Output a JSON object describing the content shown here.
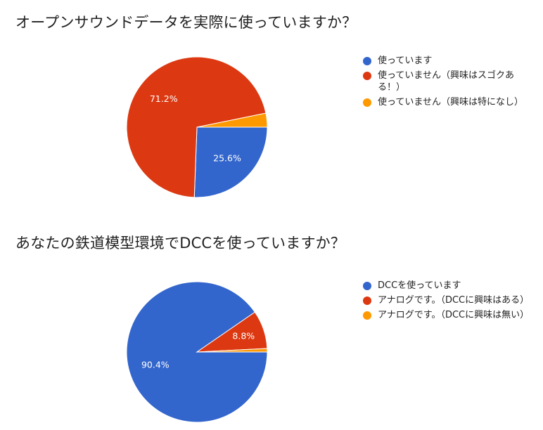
{
  "charts": [
    {
      "title": "オープンサウンドデータを実際に使っていますか？",
      "legend": [
        {
          "label": "使っています",
          "color": "#3366cc"
        },
        {
          "label": "使っていません（興味はスゴクある！）",
          "color": "#dc3912"
        },
        {
          "label": "使っていません（興味は特になし）",
          "color": "#ff9900"
        }
      ]
    },
    {
      "title": "あなたの鉄道模型環境でDCCを使っていますか？",
      "legend": [
        {
          "label": "DCCを使っています",
          "color": "#3366cc"
        },
        {
          "label": "アナログです。（DCCに興味はある）",
          "color": "#dc3912"
        },
        {
          "label": "アナログです。（DCCに興味は無い）",
          "color": "#ff9900"
        }
      ]
    }
  ],
  "chart_data": [
    {
      "type": "pie",
      "title": "オープンサウンドデータを実際に使っていますか？",
      "labels": [
        "使っています",
        "使っていません（興味はスゴクある！）",
        "使っていません（興味は特になし）"
      ],
      "values": [
        25.6,
        71.2,
        3.2
      ],
      "slice_labels": [
        "25.6%",
        "71.2%",
        ""
      ],
      "colors": [
        "#3366cc",
        "#dc3912",
        "#ff9900"
      ],
      "legend_position": "right"
    },
    {
      "type": "pie",
      "title": "あなたの鉄道模型環境でDCCを使っていますか？",
      "labels": [
        "DCCを使っています",
        "アナログです。（DCCに興味はある）",
        "アナログです。（DCCに興味は無い）"
      ],
      "values": [
        90.4,
        8.8,
        0.8
      ],
      "slice_labels": [
        "90.4%",
        "8.8%",
        ""
      ],
      "colors": [
        "#3366cc",
        "#dc3912",
        "#ff9900"
      ],
      "legend_position": "right"
    }
  ]
}
